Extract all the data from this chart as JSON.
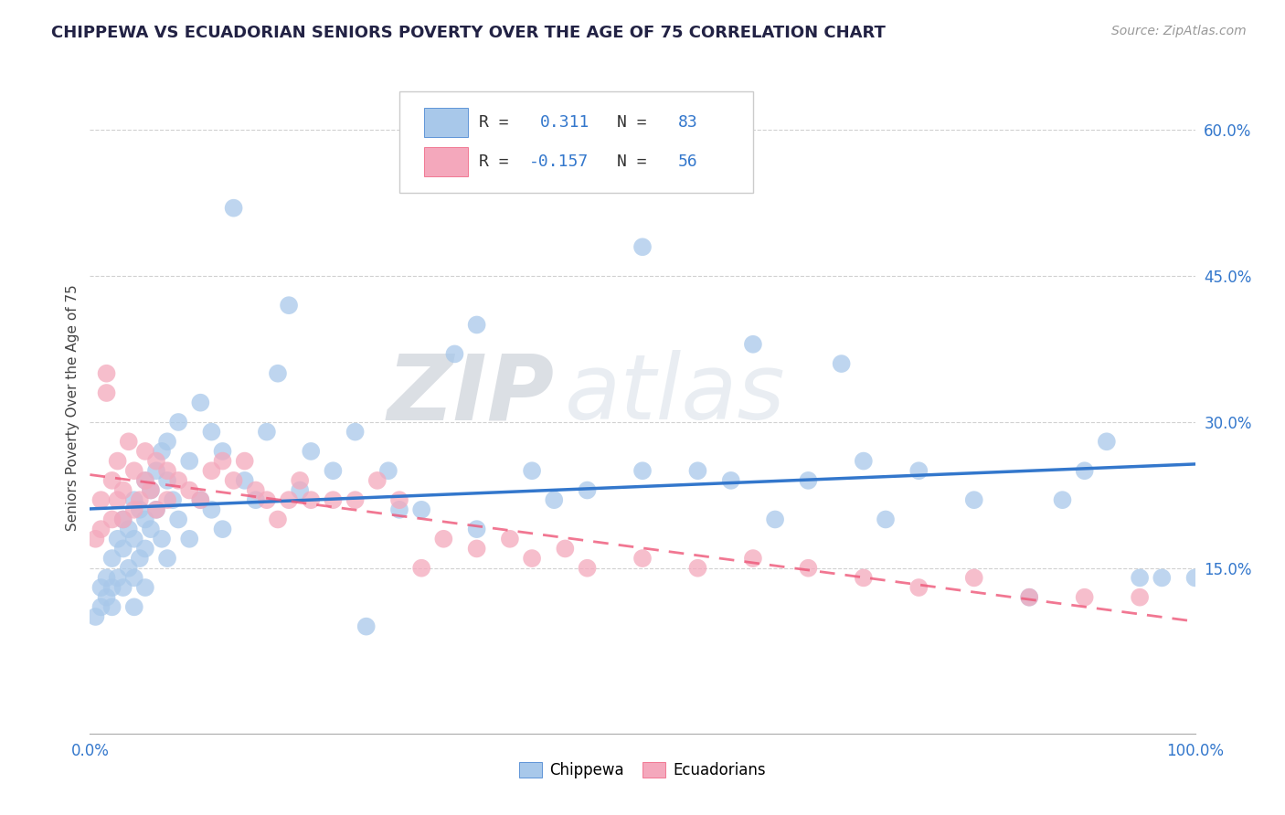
{
  "title": "CHIPPEWA VS ECUADORIAN SENIORS POVERTY OVER THE AGE OF 75 CORRELATION CHART",
  "source": "Source: ZipAtlas.com",
  "ylabel": "Seniors Poverty Over the Age of 75",
  "xlim": [
    0.0,
    1.0
  ],
  "ylim": [
    -0.02,
    0.65
  ],
  "yticks": [
    0.15,
    0.3,
    0.45,
    0.6
  ],
  "ytick_labels": [
    "15.0%",
    "30.0%",
    "45.0%",
    "60.0%"
  ],
  "xtick_labels_show": [
    "0.0%",
    "100.0%"
  ],
  "chippewa_color": "#a8c8ea",
  "ecuadorian_color": "#f4a8bc",
  "chippewa_line_color": "#3377cc",
  "ecuadorian_line_color": "#ee5577",
  "watermark_zip": "ZIP",
  "watermark_atlas": "atlas",
  "chippewa_x": [
    0.005,
    0.01,
    0.01,
    0.015,
    0.015,
    0.02,
    0.02,
    0.02,
    0.025,
    0.025,
    0.03,
    0.03,
    0.03,
    0.035,
    0.035,
    0.04,
    0.04,
    0.04,
    0.04,
    0.045,
    0.045,
    0.05,
    0.05,
    0.05,
    0.05,
    0.055,
    0.055,
    0.06,
    0.06,
    0.065,
    0.065,
    0.07,
    0.07,
    0.07,
    0.075,
    0.08,
    0.08,
    0.09,
    0.09,
    0.1,
    0.1,
    0.11,
    0.11,
    0.12,
    0.12,
    0.13,
    0.14,
    0.15,
    0.16,
    0.17,
    0.18,
    0.19,
    0.2,
    0.22,
    0.24,
    0.25,
    0.27,
    0.3,
    0.33,
    0.35,
    0.4,
    0.45,
    0.5,
    0.55,
    0.58,
    0.6,
    0.65,
    0.68,
    0.7,
    0.75,
    0.8,
    0.85,
    0.88,
    0.9,
    0.92,
    0.95,
    0.97,
    1.0,
    0.5,
    0.28,
    0.35,
    0.42,
    0.62,
    0.72
  ],
  "chippewa_y": [
    0.1,
    0.13,
    0.11,
    0.14,
    0.12,
    0.16,
    0.13,
    0.11,
    0.18,
    0.14,
    0.2,
    0.17,
    0.13,
    0.19,
    0.15,
    0.22,
    0.18,
    0.14,
    0.11,
    0.21,
    0.16,
    0.24,
    0.2,
    0.17,
    0.13,
    0.23,
    0.19,
    0.25,
    0.21,
    0.27,
    0.18,
    0.28,
    0.24,
    0.16,
    0.22,
    0.3,
    0.2,
    0.26,
    0.18,
    0.32,
    0.22,
    0.29,
    0.21,
    0.27,
    0.19,
    0.52,
    0.24,
    0.22,
    0.29,
    0.35,
    0.42,
    0.23,
    0.27,
    0.25,
    0.29,
    0.09,
    0.25,
    0.21,
    0.37,
    0.4,
    0.25,
    0.23,
    0.48,
    0.25,
    0.24,
    0.38,
    0.24,
    0.36,
    0.26,
    0.25,
    0.22,
    0.12,
    0.22,
    0.25,
    0.28,
    0.14,
    0.14,
    0.14,
    0.25,
    0.21,
    0.19,
    0.22,
    0.2,
    0.2
  ],
  "ecuadorian_x": [
    0.005,
    0.01,
    0.01,
    0.015,
    0.015,
    0.02,
    0.02,
    0.025,
    0.025,
    0.03,
    0.03,
    0.035,
    0.04,
    0.04,
    0.045,
    0.05,
    0.05,
    0.055,
    0.06,
    0.06,
    0.07,
    0.07,
    0.08,
    0.09,
    0.1,
    0.11,
    0.12,
    0.13,
    0.14,
    0.15,
    0.16,
    0.17,
    0.18,
    0.19,
    0.2,
    0.22,
    0.24,
    0.26,
    0.28,
    0.3,
    0.32,
    0.35,
    0.38,
    0.4,
    0.43,
    0.45,
    0.5,
    0.55,
    0.6,
    0.65,
    0.7,
    0.75,
    0.8,
    0.85,
    0.9,
    0.95
  ],
  "ecuadorian_y": [
    0.18,
    0.22,
    0.19,
    0.35,
    0.33,
    0.24,
    0.2,
    0.26,
    0.22,
    0.23,
    0.2,
    0.28,
    0.25,
    0.21,
    0.22,
    0.27,
    0.24,
    0.23,
    0.26,
    0.21,
    0.25,
    0.22,
    0.24,
    0.23,
    0.22,
    0.25,
    0.26,
    0.24,
    0.26,
    0.23,
    0.22,
    0.2,
    0.22,
    0.24,
    0.22,
    0.22,
    0.22,
    0.24,
    0.22,
    0.15,
    0.18,
    0.17,
    0.18,
    0.16,
    0.17,
    0.15,
    0.16,
    0.15,
    0.16,
    0.15,
    0.14,
    0.13,
    0.14,
    0.12,
    0.12,
    0.12
  ]
}
